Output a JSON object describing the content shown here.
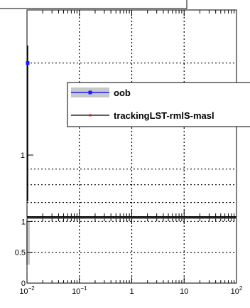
{
  "chart_data": [
    {
      "panel": "main",
      "type": "line",
      "xscale": "log",
      "yscale": "log",
      "xlim": [
        0.01,
        100
      ],
      "grid": true,
      "legend_placement": "right",
      "series": [
        {
          "name": "oob",
          "color": "#1a1aff",
          "x": [
            0.0103
          ],
          "y": [
            2.0
          ],
          "yerr_low": [
            0.55
          ],
          "yerr_high": [
            11.0
          ]
        },
        {
          "name": "trackingLST-rmlS-masl",
          "color": "#e01010",
          "x": [],
          "y": []
        }
      ],
      "y_tick_labels": [
        "1"
      ]
    },
    {
      "panel": "ratio",
      "type": "bar",
      "xscale": "log",
      "xlim": [
        0.01,
        100
      ],
      "ylim": [
        0,
        1.05
      ],
      "grid": true,
      "series": [
        {
          "name": "oob",
          "color": "#c8c8c8",
          "x": [
            0.0103
          ],
          "y": [
            0.3
          ],
          "y_high": [
            1.0
          ]
        }
      ],
      "y_tick_labels": [
        "0",
        "0.5",
        "1"
      ],
      "x_tick_labels": [
        {
          "base": "10",
          "exp": "−2",
          "value": 0.01
        },
        {
          "base": "10",
          "exp": "−1",
          "value": 0.1
        },
        {
          "base": "1",
          "exp": "",
          "value": 1
        },
        {
          "base": "10",
          "exp": "",
          "value": 10
        },
        {
          "base": "10",
          "exp": "2",
          "value": 100
        }
      ]
    }
  ]
}
